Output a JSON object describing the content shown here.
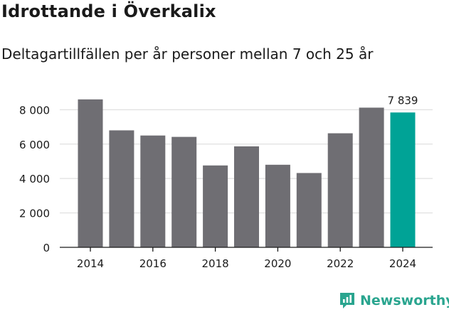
{
  "header": {
    "title": "Idrottande i Överkalix",
    "subtitle": "Deltagartillfällen per år personer mellan 7 och 25 år"
  },
  "brand": {
    "name": "Newsworthy"
  },
  "colors": {
    "bar": "#6f6e73",
    "highlight": "#00a396",
    "grid": "#d9d9d9",
    "axis": "#1a1a1a",
    "brand": "#2aa58f"
  },
  "chart_data": {
    "type": "bar",
    "title": "Idrottande i Överkalix",
    "subtitle": "Deltagartillfällen per år personer mellan 7 och 25 år",
    "xlabel": "",
    "ylabel": "",
    "categories": [
      "2014",
      "2015",
      "2016",
      "2017",
      "2018",
      "2019",
      "2020",
      "2021",
      "2022",
      "2023",
      "2024"
    ],
    "values": [
      8600,
      6800,
      6500,
      6420,
      4760,
      5870,
      4800,
      4320,
      6630,
      8120,
      7839
    ],
    "highlight_index": 10,
    "highlight_label": "7 839",
    "ylim": [
      0,
      8800
    ],
    "yticks": [
      0,
      2000,
      4000,
      6000,
      8000
    ],
    "ytick_labels": [
      "0",
      "2 000",
      "4 000",
      "6 000",
      "8 000"
    ],
    "xtick_labels": [
      "2014",
      "2016",
      "2018",
      "2020",
      "2022",
      "2024"
    ],
    "grid": true
  }
}
